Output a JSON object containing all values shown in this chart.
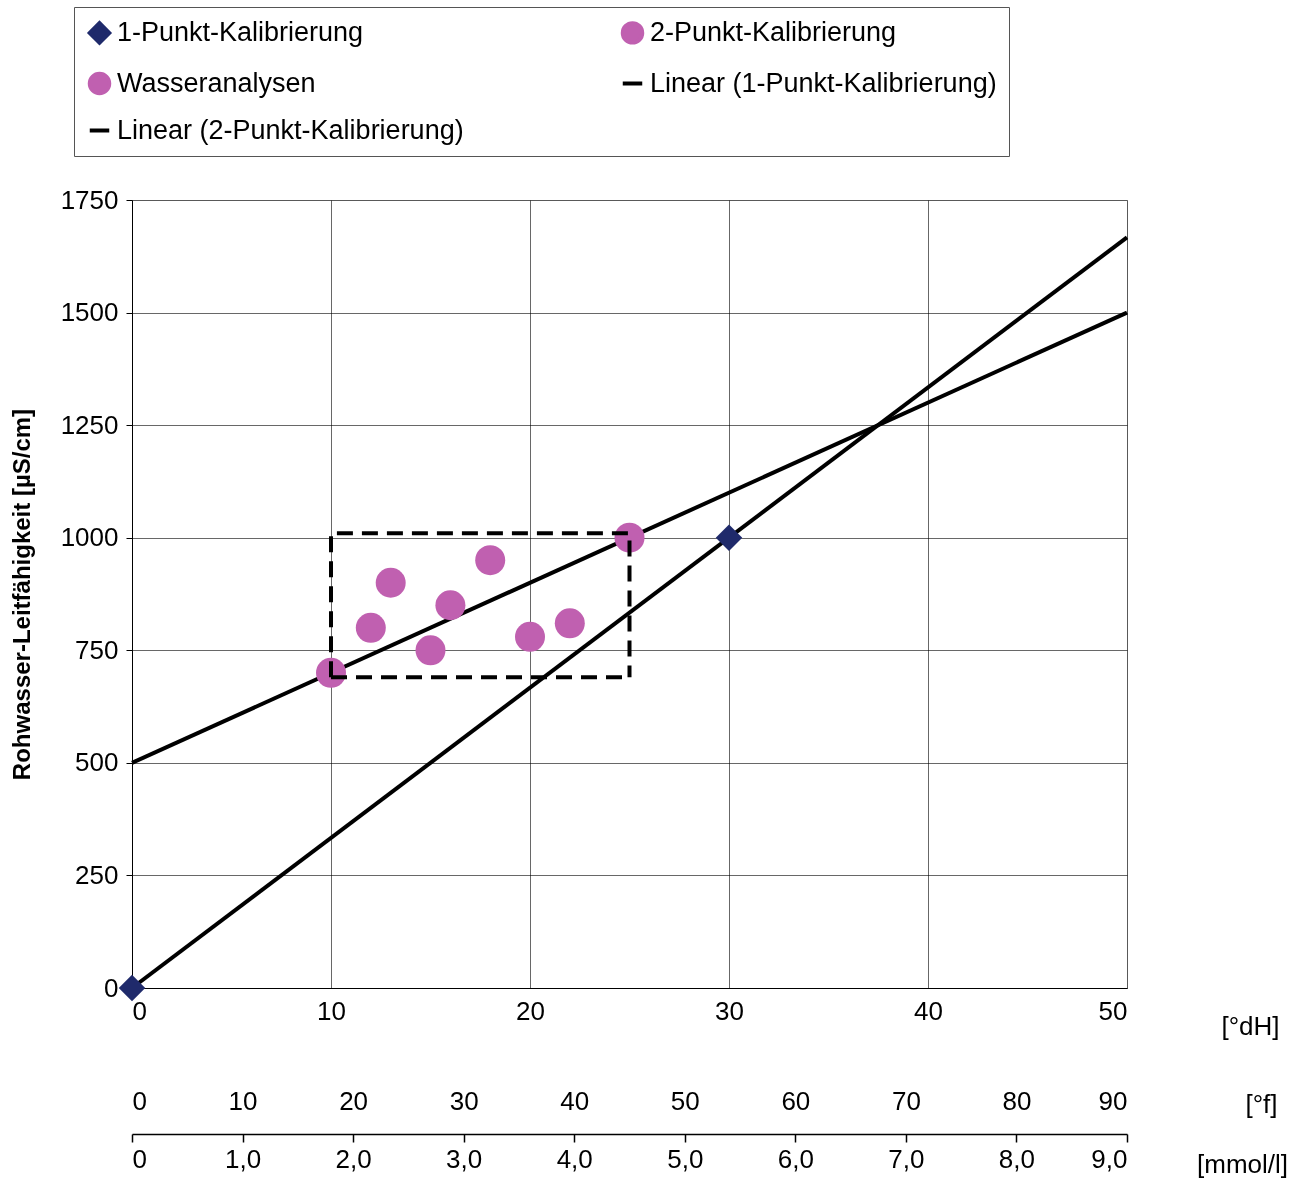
{
  "chart_data": {
    "type": "scatter",
    "xlabel": "[°dH]",
    "ylabel": "Rohwasser-Leitfähigkeit [µS/cm]",
    "x2label": "[°f]",
    "xlim": [
      0,
      50
    ],
    "xticks": [
      0,
      10,
      20,
      30,
      40,
      50
    ],
    "ylim": [
      0,
      1750
    ],
    "yticks": [
      0,
      250,
      500,
      750,
      1000,
      1250,
      1500,
      1750
    ],
    "x2lim": [
      0,
      90
    ],
    "x2ticks": [
      0,
      10,
      20,
      30,
      40,
      50,
      60,
      70,
      80,
      90
    ],
    "annotations": [
      "0",
      "1,0",
      "2,0",
      "3,0",
      "4,0",
      "5,0",
      "6,0",
      "7,0",
      "8,0",
      "9,0",
      "[mmol/l]"
    ],
    "grid": true,
    "legend": "top",
    "series": [
      {
        "name": "1-Punkt-Kalibrierung",
        "type": "scatter",
        "marker": "diamond",
        "color": "#1f2a6b",
        "x": [
          0,
          30
        ],
        "values": [
          0,
          1000
        ]
      },
      {
        "name": "2-Punkt-Kalibrierung",
        "type": "scatter",
        "marker": "circle",
        "color": "#c060b0",
        "x": [
          10,
          25
        ],
        "values": [
          700,
          1000
        ]
      },
      {
        "name": "Wasseranalysen",
        "type": "scatter",
        "marker": "circle",
        "color": "#c060b0",
        "x": [
          12,
          13,
          15,
          16,
          18,
          20,
          22
        ],
        "values": [
          800,
          900,
          750,
          850,
          950,
          780,
          810
        ]
      },
      {
        "name": "Linear (1-Punkt-Kalibrierung)",
        "type": "line",
        "color": "#000000",
        "x": [
          0,
          50
        ],
        "values": [
          0,
          1667
        ]
      },
      {
        "name": "Linear (2-Punkt-Kalibrierung)",
        "type": "line",
        "color": "#000000",
        "x": [
          0,
          50
        ],
        "values": [
          500,
          1500
        ]
      },
      {
        "type": "line",
        "line_style": "dashed",
        "color": "#000000",
        "x": [
          10,
          10,
          25,
          25
        ],
        "values": [
          690,
          1010,
          1010,
          690
        ]
      },
      {
        "type": "line",
        "line_style": "dashed",
        "color": "#000000",
        "x": [
          10,
          25
        ],
        "values": [
          690,
          690
        ]
      }
    ]
  }
}
